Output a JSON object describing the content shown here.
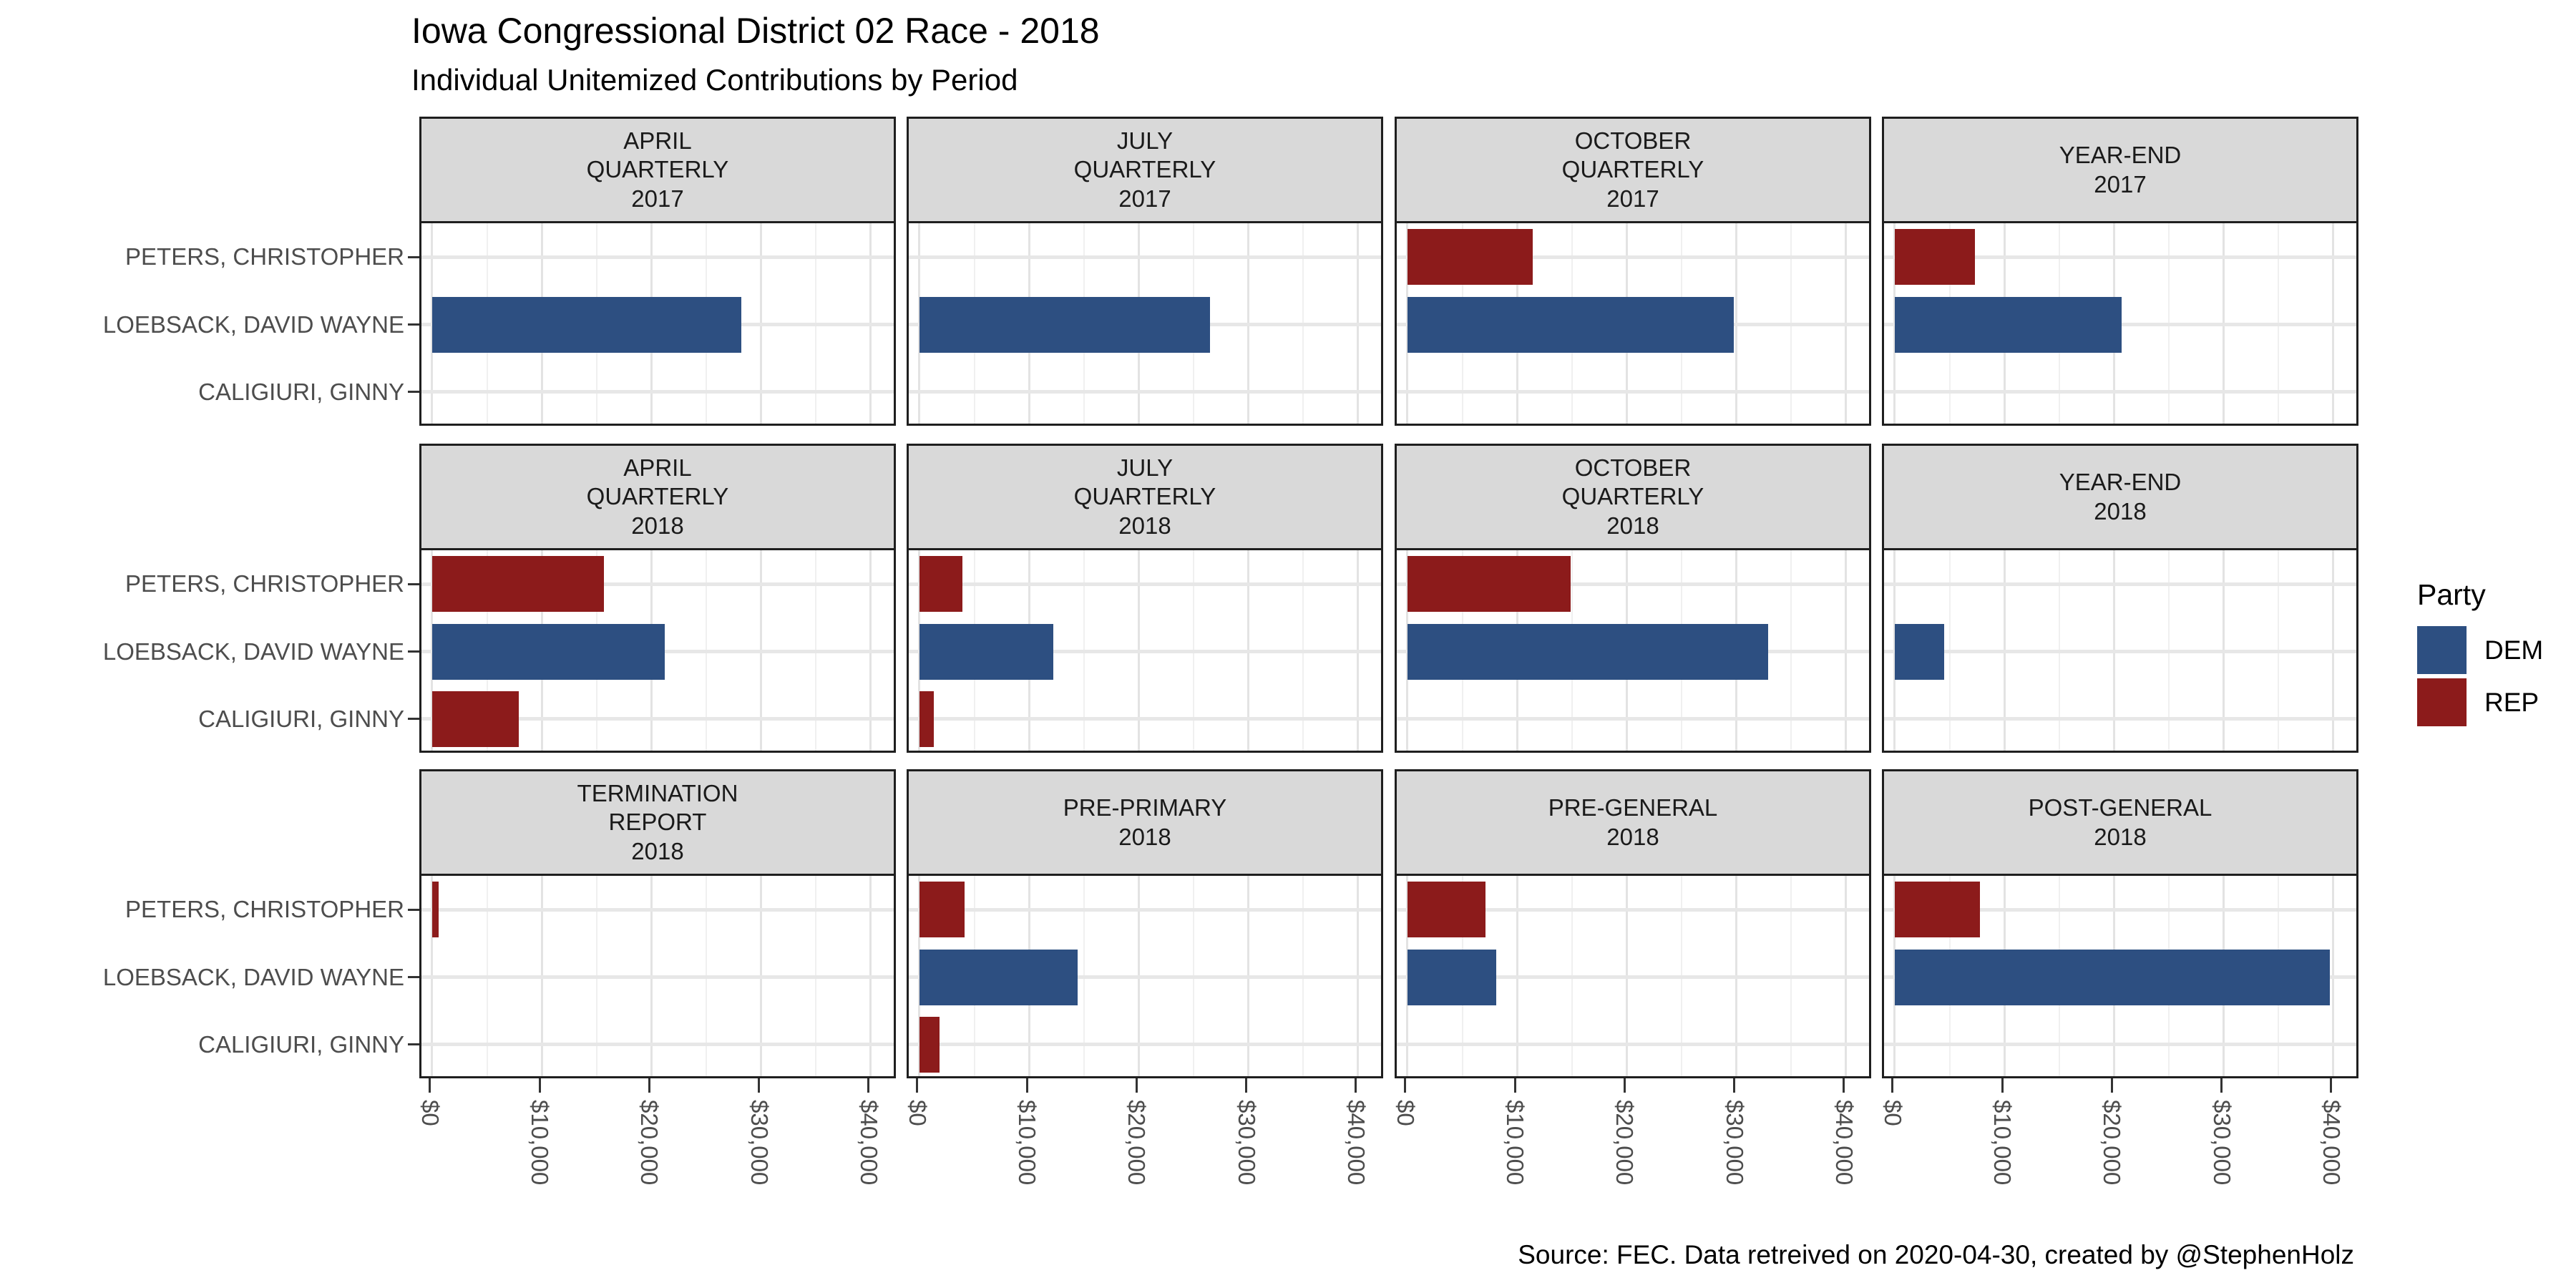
{
  "title": "Iowa Congressional District 02 Race - 2018",
  "subtitle": "Individual Unitemized Contributions by Period",
  "caption": "Source: FEC. Data retreived on 2020-04-30, created by @StephenHolz",
  "legend": {
    "title": "Party",
    "entries": [
      {
        "label": "DEM",
        "color": "#2D4F81"
      },
      {
        "label": "REP",
        "color": "#8C1B1B"
      }
    ]
  },
  "colors": {
    "dem": "#2D4F81",
    "rep": "#8C1B1B",
    "strip_bg": "#D9D9D9",
    "panel_border": "#1F1F1F",
    "grid_major": "#E3E3E3",
    "grid_minor": "#F0F0F0",
    "axis_text": "#4D4D4D"
  },
  "chart_data": {
    "type": "bar",
    "orientation": "horizontal",
    "title": "Iowa Congressional District 02 Race - 2018",
    "subtitle": "Individual Unitemized Contributions by Period",
    "categories": [
      "PETERS, CHRISTOPHER",
      "LOEBSACK, DAVID WAYNE",
      "CALIGIURI, GINNY"
    ],
    "category_party": [
      "REP",
      "DEM",
      "REP"
    ],
    "x_axis": {
      "tick_labels": [
        "$0",
        "$10,000",
        "$20,000",
        "$30,000",
        "$40,000"
      ],
      "tick_values": [
        0,
        10000,
        20000,
        30000,
        40000
      ],
      "minor_step": 5000,
      "range_max": 42500
    },
    "legend_title": "Party",
    "legend_entries": [
      "DEM",
      "REP"
    ],
    "grid": true,
    "facet_layout": {
      "rows": 3,
      "cols": 4
    },
    "facets": [
      {
        "label": "APRIL\nQUARTERLY\n2017",
        "values": [
          0,
          28200,
          0
        ]
      },
      {
        "label": "JULY\nQUARTERLY\n2017",
        "values": [
          0,
          26500,
          0
        ]
      },
      {
        "label": "OCTOBER\nQUARTERLY\n2017",
        "values": [
          11400,
          29800,
          0
        ]
      },
      {
        "label": "YEAR-END\n2017",
        "values": [
          7300,
          20700,
          0
        ]
      },
      {
        "label": "APRIL\nQUARTERLY\n2018",
        "values": [
          15700,
          21200,
          7900
        ]
      },
      {
        "label": "JULY\nQUARTERLY\n2018",
        "values": [
          3900,
          12200,
          1300
        ]
      },
      {
        "label": "OCTOBER\nQUARTERLY\n2018",
        "values": [
          14900,
          32900,
          0
        ]
      },
      {
        "label": "YEAR-END\n2018",
        "values": [
          0,
          4500,
          0
        ]
      },
      {
        "label": "TERMINATION\nREPORT\n2018",
        "values": [
          600,
          0,
          0
        ]
      },
      {
        "label": "PRE-PRIMARY\n2018",
        "values": [
          4100,
          14400,
          1800
        ]
      },
      {
        "label": "PRE-GENERAL\n2018",
        "values": [
          7100,
          8100,
          0
        ]
      },
      {
        "label": "POST-GENERAL\n2018",
        "values": [
          7800,
          39700,
          0
        ]
      }
    ]
  }
}
